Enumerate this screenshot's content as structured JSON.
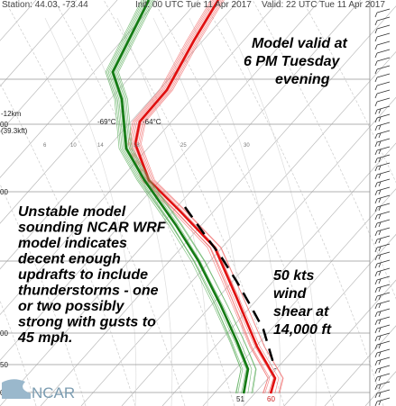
{
  "header": {
    "station": "Station: 44.03, -73.44",
    "init": "Init: 00 UTC Tue 11 Apr 2017",
    "valid": "Valid: 22 UTC Tue 11 Apr 2017"
  },
  "annotations": {
    "valid_note": [
      "Model valid at",
      "6 PM Tuesday",
      "evening"
    ],
    "sounding_note": [
      "Unstable model",
      "sounding NCAR WRF",
      "model indicates",
      "decent enough",
      "updrafts to include",
      "thunderstorms - one",
      "or two possibly",
      "strong with gusts to",
      "45 mph."
    ],
    "shear_note": [
      "50 kts",
      "wind",
      "shear at",
      "14,000 ft"
    ]
  },
  "labels": {
    "height": "-12km",
    "height_kft": "(39.3kft)",
    "dewpoint_top": "-69°C",
    "temperature_top": "-64°C"
  },
  "surface": {
    "dewpoint": "51",
    "temperature": "60"
  },
  "pressure_labels": [
    "00",
    "00",
    "00",
    "50",
    "00"
  ],
  "mixing_ratio_labels": [
    "6",
    "10",
    "14",
    "18",
    "25",
    "30"
  ],
  "logo": "NCAR"
}
